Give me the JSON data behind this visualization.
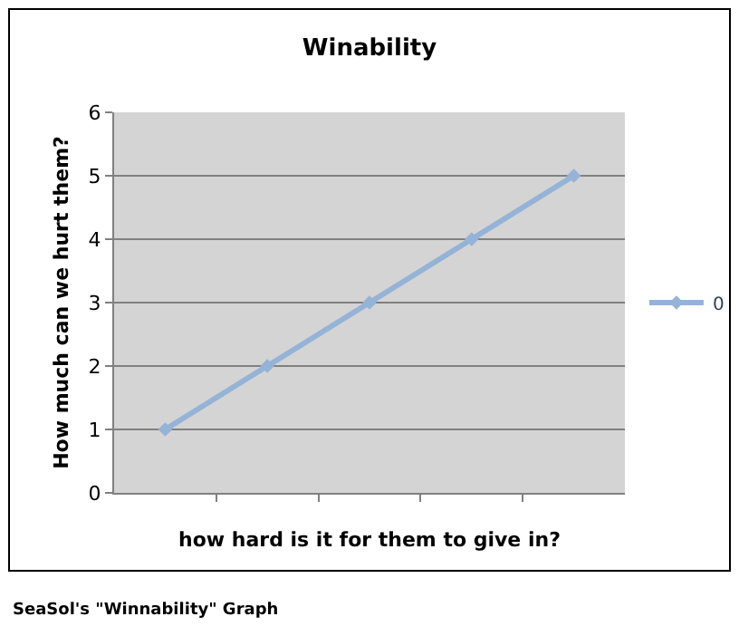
{
  "chart_data": {
    "type": "line",
    "title": "Winability",
    "xlabel": "how hard is it for them to give in?",
    "ylabel": "How much can we hurt them?",
    "categories": [
      null,
      null,
      null,
      null,
      null
    ],
    "series": [
      {
        "name": "0",
        "color": "#95b3d7",
        "values": [
          1,
          2,
          3,
          4,
          5
        ]
      }
    ],
    "ylim": [
      0,
      6
    ],
    "yticks": [
      0,
      1,
      2,
      3,
      4,
      5,
      6
    ],
    "grid": "y",
    "legend": "right",
    "marker": "diamond",
    "line_style": "solid",
    "tick_labels": "y",
    "annotations": [
      "SeaSol's \"Winnability\" Graph"
    ]
  }
}
